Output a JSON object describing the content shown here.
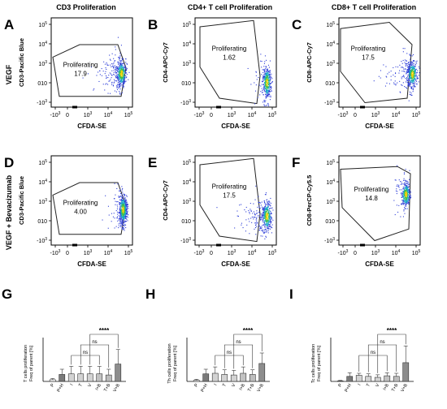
{
  "headers": {
    "col1": "CD3 Proliferation",
    "col2": "CD4+ T cell Proliferation",
    "col3": "CD8+ T cell Proliferation"
  },
  "row_labels": {
    "row1": "VEGF",
    "row2": "VEGF + Bevacizumab"
  },
  "gate_label": "Proliferating",
  "flow_x_ticks": [
    "-10",
    "0",
    "10",
    "10",
    "10"
  ],
  "flow_x_exponents": [
    "3",
    "",
    "3",
    "4",
    "5"
  ],
  "flow_y_ticks": [
    "10",
    "10",
    "10",
    "10",
    "10"
  ],
  "flow_y_exponents": [
    "5",
    "4",
    "3",
    "",
    "3"
  ],
  "flow_y_prefix": [
    "",
    "",
    "",
    "0",
    "-"
  ],
  "flow_panels": [
    {
      "letter": "A",
      "xlabel": "CFDA-SE",
      "ylabel": "CD3-Pacific Blue",
      "value": "17.9"
    },
    {
      "letter": "B",
      "xlabel": "CFDA-SE",
      "ylabel": "CD4-APC-Cy7",
      "value": "1.62"
    },
    {
      "letter": "C",
      "xlabel": "CFDA-SE",
      "ylabel": "CD8-APC-Cy7",
      "value": "17.5"
    },
    {
      "letter": "D",
      "xlabel": "CFDA-SE",
      "ylabel": "CD3-Pacific Blue",
      "value": "4.00"
    },
    {
      "letter": "E",
      "xlabel": "CFDA-SE",
      "ylabel": "CD4-APC-Cy7",
      "value": "17.5"
    },
    {
      "letter": "F",
      "xlabel": "CFDA-SE",
      "ylabel": "CD8-PerCP-Cy5.5",
      "value": "14.8"
    }
  ],
  "chart_data": [
    {
      "type": "bar",
      "letter": "G",
      "ylabel": "T cells proliferation",
      "ylabel2": "Freq of parent [%]",
      "categories": [
        "P",
        "P+H",
        "I",
        "T",
        "V",
        "I+B",
        "T+B",
        "V+B"
      ],
      "values": [
        1.5,
        6,
        6.5,
        6.5,
        6.5,
        6.5,
        5.5,
        15
      ],
      "errors": [
        1,
        4.5,
        6.5,
        6.5,
        6.5,
        6.5,
        5,
        12.5
      ],
      "ylim": [
        0,
        35
      ],
      "brackets": [
        "ns",
        "ns",
        "****"
      ]
    },
    {
      "type": "bar",
      "letter": "H",
      "ylabel": "Th cells proliferation",
      "ylabel2": "Freq of parent [%]",
      "categories": [
        "P",
        "P+H",
        "I",
        "T",
        "V",
        "I+B",
        "T+B",
        "V+B"
      ],
      "values": [
        1,
        6.5,
        7,
        6,
        5.5,
        7,
        6,
        15.5
      ],
      "errors": [
        0.8,
        4,
        5.5,
        4,
        4,
        5.5,
        4,
        9
      ],
      "ylim": [
        0,
        35
      ],
      "brackets": [
        "ns",
        "ns",
        "****"
      ]
    },
    {
      "type": "bar",
      "letter": "I",
      "ylabel": "Tc cells proliferation",
      "ylabel2": "Freq of parent [%]",
      "categories": [
        "P",
        "P+H",
        "I",
        "T",
        "V",
        "I+B",
        "T+B",
        "V+B"
      ],
      "values": [
        0.5,
        5,
        6,
        5,
        4,
        5.5,
        5,
        18.5
      ],
      "errors": [
        0.5,
        3.5,
        2,
        2.5,
        2.5,
        3,
        3,
        16.5
      ],
      "ylim": [
        0,
        40
      ],
      "brackets": [
        "ns",
        "ns",
        "****"
      ]
    }
  ],
  "colors": {
    "bar_light": "#cfcfcf",
    "bar_mid": "#a9a9a9",
    "bar_dark": "#7a7a7a"
  }
}
